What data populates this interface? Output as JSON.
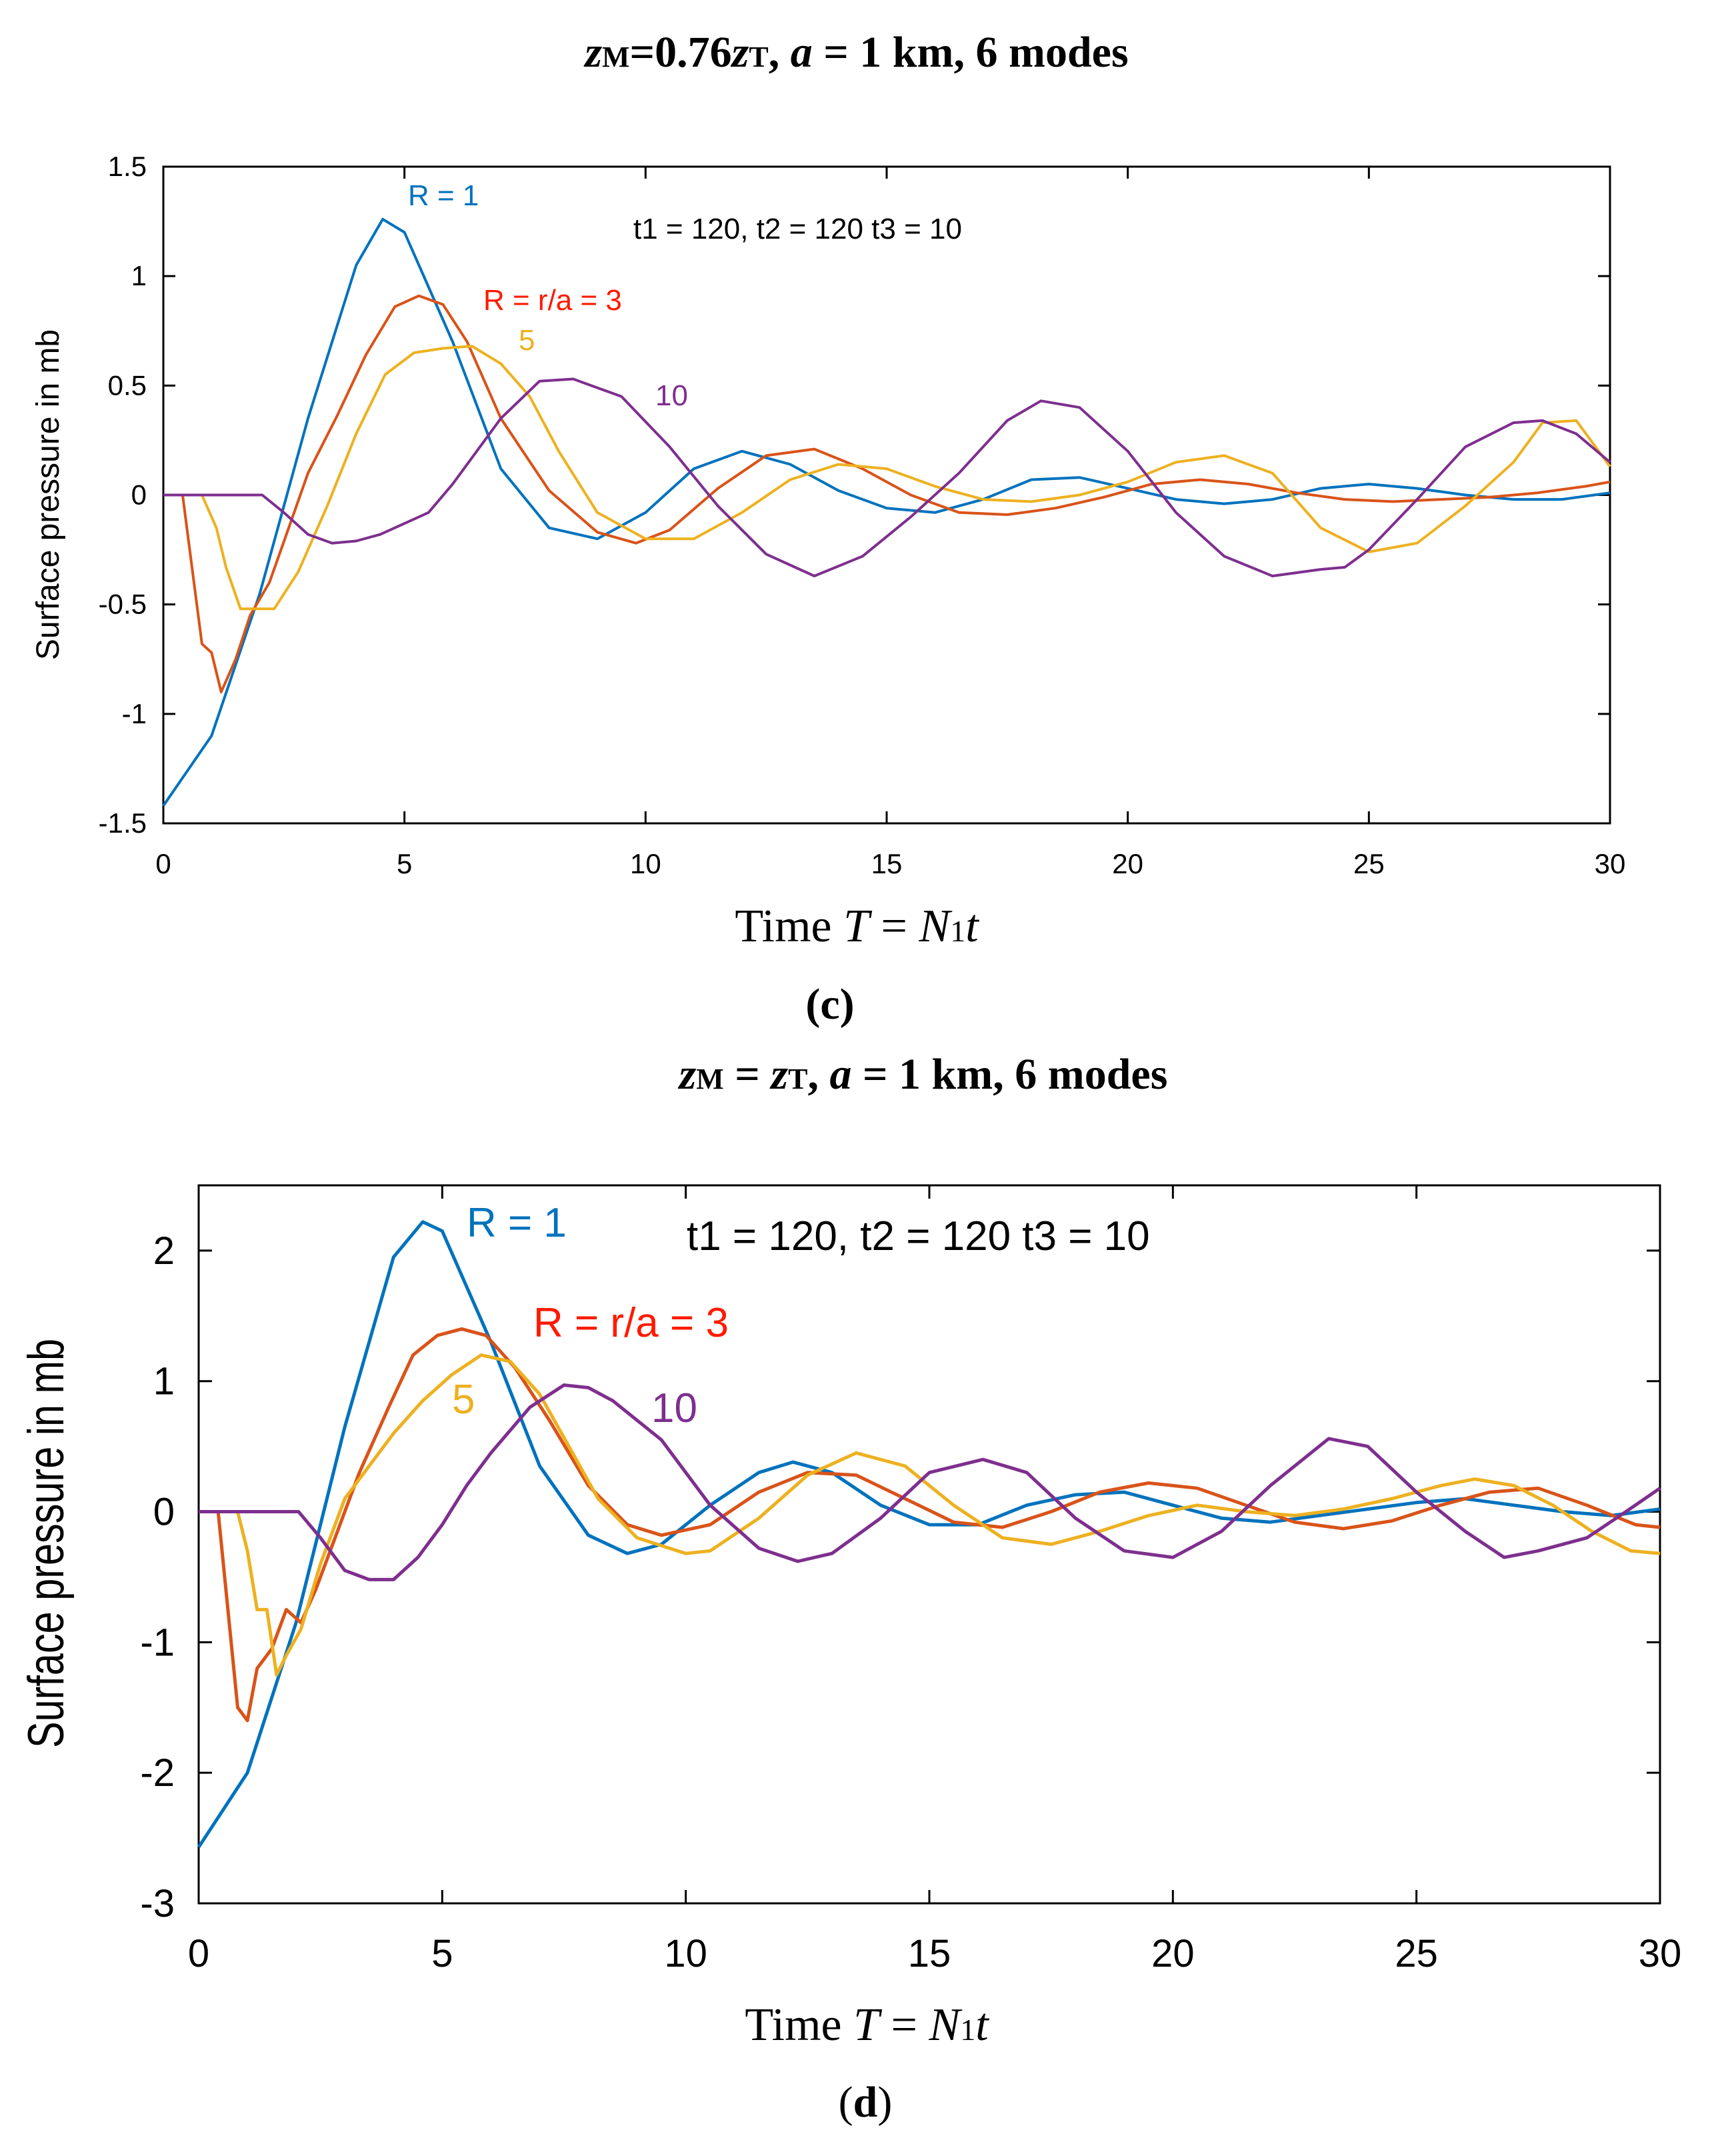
{
  "chart_data": [
    {
      "type": "line",
      "panel_label": "(c)",
      "title": {
        "z_sym": "z",
        "m_sub": "M",
        "mid": "=0.76",
        "z2_sym": "z",
        "t_sub": "T",
        "a_pre": ", ",
        "a_sym": "a",
        "rest": " = 1 km, 6 modes"
      },
      "xlabel": {
        "pre": "Time ",
        "T": "T",
        "eq": " = ",
        "N": "N",
        "sub": "1",
        "t": "t"
      },
      "ylabel": "Surface pressure in mb",
      "xlim": [
        0,
        30
      ],
      "ylim": [
        -1.5,
        1.5
      ],
      "xticks": [
        "0",
        "5",
        "10",
        "15",
        "20",
        "25",
        "30"
      ],
      "yticks": [
        "-1.5",
        "-1",
        "-0.5",
        "0",
        "0.5",
        "1",
        "1.5"
      ],
      "grid": false,
      "annotations": {
        "params": "t1 = 120, t2 = 120 t3 = 10",
        "r1": "R = 1",
        "r3": "R = r/a = 3",
        "r5": "5",
        "r10": "10"
      },
      "series": [
        {
          "name": "R = 1",
          "color": "#0072BD",
          "x": [
            0,
            1,
            2,
            3,
            4,
            4.55,
            5,
            6,
            7,
            8,
            9,
            10,
            11,
            12,
            13,
            14,
            15,
            16,
            17,
            18,
            19,
            20,
            21,
            22,
            23,
            24,
            25,
            26,
            27,
            28,
            29,
            30
          ],
          "y": [
            -1.42,
            -1.1,
            -0.45,
            0.35,
            1.05,
            1.26,
            1.2,
            0.7,
            0.12,
            -0.15,
            -0.2,
            -0.08,
            0.12,
            0.2,
            0.14,
            0.02,
            -0.06,
            -0.08,
            -0.02,
            0.07,
            0.08,
            0.03,
            -0.02,
            -0.04,
            -0.02,
            0.03,
            0.05,
            0.03,
            0.0,
            -0.02,
            -0.02,
            0.01
          ]
        },
        {
          "name": "R = r/a = 3",
          "color": "#D95319",
          "x": [
            0,
            0.4,
            0.8,
            1.0,
            1.2,
            1.5,
            1.8,
            2.2,
            2.6,
            3.0,
            3.6,
            4.2,
            4.8,
            5.3,
            5.8,
            6.3,
            7,
            8,
            9,
            9.8,
            10.5,
            11.5,
            12.5,
            13.5,
            14.5,
            15.5,
            16.5,
            17.5,
            18.5,
            19.5,
            20.5,
            21.5,
            22.5,
            23.5,
            24.5,
            25.5,
            26.5,
            27.5,
            28.5,
            29.5,
            30
          ],
          "y": [
            0,
            0,
            -0.68,
            -0.72,
            -0.9,
            -0.75,
            -0.55,
            -0.4,
            -0.15,
            0.1,
            0.36,
            0.64,
            0.86,
            0.91,
            0.87,
            0.7,
            0.35,
            0.02,
            -0.17,
            -0.22,
            -0.16,
            0.03,
            0.18,
            0.21,
            0.12,
            0.0,
            -0.08,
            -0.09,
            -0.06,
            -0.01,
            0.05,
            0.07,
            0.05,
            0.01,
            -0.02,
            -0.03,
            -0.02,
            -0.01,
            0.01,
            0.04,
            0.06
          ]
        },
        {
          "name": "5",
          "color": "#EDB120",
          "x": [
            0,
            0.8,
            1.1,
            1.3,
            1.6,
            1.8,
            2.3,
            2.8,
            3.4,
            4.0,
            4.6,
            5.2,
            5.8,
            6.4,
            7.0,
            7.6,
            8.2,
            9,
            10,
            11,
            12,
            13,
            14,
            15,
            16,
            17,
            18,
            19,
            20,
            21,
            22,
            23,
            24,
            25,
            26,
            27,
            28,
            28.6,
            29.3,
            30
          ],
          "y": [
            0,
            0,
            -0.15,
            -0.33,
            -0.52,
            -0.52,
            -0.52,
            -0.35,
            -0.05,
            0.28,
            0.55,
            0.65,
            0.67,
            0.68,
            0.6,
            0.45,
            0.2,
            -0.08,
            -0.2,
            -0.2,
            -0.08,
            0.07,
            0.14,
            0.12,
            0.04,
            -0.02,
            -0.03,
            0.0,
            0.06,
            0.15,
            0.18,
            0.1,
            -0.15,
            -0.26,
            -0.22,
            -0.05,
            0.15,
            0.33,
            0.34,
            0.13
          ]
        },
        {
          "name": "10",
          "color": "#7E2F8E",
          "x": [
            0,
            2.05,
            2.5,
            3.0,
            3.5,
            4.0,
            4.5,
            5.0,
            5.5,
            6,
            7,
            7.8,
            8.5,
            9.5,
            10.5,
            11.5,
            12.5,
            13.5,
            14.5,
            15.5,
            16.5,
            17.5,
            18.2,
            19,
            20,
            21,
            22,
            23,
            24,
            24.5,
            25,
            26,
            27,
            28,
            28.6,
            29.3,
            30
          ],
          "y": [
            0,
            0,
            -0.08,
            -0.18,
            -0.22,
            -0.21,
            -0.18,
            -0.13,
            -0.08,
            0.05,
            0.35,
            0.52,
            0.53,
            0.45,
            0.22,
            -0.05,
            -0.27,
            -0.37,
            -0.28,
            -0.1,
            0.1,
            0.34,
            0.43,
            0.4,
            0.2,
            -0.08,
            -0.28,
            -0.37,
            -0.34,
            -0.33,
            -0.25,
            -0.02,
            0.22,
            0.33,
            0.34,
            0.28,
            0.15
          ]
        }
      ]
    },
    {
      "type": "line",
      "panel_label": "(d)",
      "title": {
        "z_sym": "z",
        "m_sub": "M",
        "mid": " = ",
        "z2_sym": "z",
        "t_sub": "T",
        "a_pre": ", ",
        "a_sym": "a",
        "rest": " = 1 km, 6 modes"
      },
      "xlabel": {
        "pre": "Time ",
        "T": "T",
        "eq": " = ",
        "N": "N",
        "sub": "1",
        "t": "t"
      },
      "ylabel": "Surface pressure in mb",
      "xlim": [
        0,
        30
      ],
      "ylim": [
        -3,
        2.5
      ],
      "xticks": [
        "0",
        "5",
        "10",
        "15",
        "20",
        "25",
        "30"
      ],
      "yticks": [
        "-3",
        "-2",
        "-1",
        "0",
        "1",
        "2"
      ],
      "grid": false,
      "annotations": {
        "params": "t1 = 120, t2 = 120 t3 = 10",
        "r1": "R = 1",
        "r3": "R = r/a = 3",
        "r5": "5",
        "r10": "10"
      },
      "series": [
        {
          "name": "R = 1",
          "color": "#0072BD",
          "x": [
            0,
            1,
            2,
            3,
            4,
            4.6,
            5,
            6,
            7,
            8,
            8.8,
            9.5,
            10.5,
            11.5,
            12.2,
            13,
            14,
            15,
            16,
            17,
            18,
            19,
            20,
            21,
            22,
            23,
            24,
            25,
            26,
            27,
            28,
            29,
            30
          ],
          "y": [
            -2.57,
            -2.0,
            -0.85,
            0.65,
            1.95,
            2.22,
            2.15,
            1.3,
            0.35,
            -0.18,
            -0.32,
            -0.25,
            0.05,
            0.3,
            0.38,
            0.3,
            0.05,
            -0.1,
            -0.1,
            0.05,
            0.13,
            0.15,
            0.05,
            -0.05,
            -0.08,
            -0.03,
            0.02,
            0.07,
            0.1,
            0.05,
            0.0,
            -0.03,
            0.02
          ]
        },
        {
          "name": "R = r/a = 3",
          "color": "#D95319",
          "x": [
            0,
            0.4,
            0.8,
            1.0,
            1.2,
            1.5,
            1.8,
            2.1,
            2.4,
            2.8,
            3.3,
            3.9,
            4.4,
            4.9,
            5.4,
            5.9,
            6.5,
            7.2,
            8,
            8.8,
            9.5,
            10.5,
            11.5,
            12.5,
            13.5,
            14.5,
            15.5,
            16.5,
            17.5,
            18.5,
            19.5,
            20.5,
            21.5,
            22.5,
            23.5,
            24.5,
            25.5,
            26.5,
            27.5,
            28.5,
            29.5,
            30
          ],
          "y": [
            0,
            0,
            -1.5,
            -1.6,
            -1.2,
            -1.05,
            -0.75,
            -0.85,
            -0.6,
            -0.2,
            0.3,
            0.8,
            1.2,
            1.35,
            1.4,
            1.35,
            1.1,
            0.7,
            0.2,
            -0.1,
            -0.18,
            -0.1,
            0.15,
            0.3,
            0.28,
            0.1,
            -0.08,
            -0.12,
            0.0,
            0.15,
            0.22,
            0.18,
            0.05,
            -0.08,
            -0.13,
            -0.07,
            0.05,
            0.15,
            0.18,
            0.05,
            -0.1,
            -0.12
          ]
        },
        {
          "name": "5",
          "color": "#EDB120",
          "x": [
            0,
            0.8,
            1.0,
            1.2,
            1.4,
            1.6,
            1.8,
            2.1,
            2.5,
            3.0,
            3.5,
            4.0,
            4.6,
            5.2,
            5.8,
            6.4,
            7.0,
            7.6,
            8.2,
            9,
            10,
            10.5,
            11.5,
            12.5,
            13.5,
            14.5,
            15.5,
            16.5,
            17.5,
            18.5,
            19.5,
            20.5,
            21.5,
            22.5,
            23.5,
            24.5,
            25.5,
            26.2,
            27,
            27.8,
            28.6,
            29.4,
            30
          ],
          "y": [
            0,
            0,
            -0.3,
            -0.75,
            -0.75,
            -1.25,
            -1.1,
            -0.9,
            -0.4,
            0.1,
            0.35,
            0.6,
            0.85,
            1.05,
            1.2,
            1.15,
            0.9,
            0.5,
            0.1,
            -0.2,
            -0.32,
            -0.3,
            -0.05,
            0.28,
            0.45,
            0.35,
            0.05,
            -0.2,
            -0.25,
            -0.15,
            -0.03,
            0.05,
            0.0,
            -0.03,
            0.02,
            0.1,
            0.2,
            0.25,
            0.2,
            0.05,
            -0.15,
            -0.3,
            -0.32
          ]
        },
        {
          "name": "10",
          "color": "#7E2F8E",
          "x": [
            0,
            2.05,
            2.5,
            3.0,
            3.5,
            4.0,
            4.5,
            5.0,
            5.5,
            6,
            6.8,
            7.5,
            8,
            8.5,
            9.5,
            10.5,
            11.5,
            12.3,
            13,
            14,
            15,
            16.1,
            17,
            18,
            19,
            20,
            21,
            22,
            23.2,
            24,
            25,
            26,
            26.8,
            27.5,
            28.5,
            29.3,
            30
          ],
          "y": [
            0,
            0,
            -0.2,
            -0.45,
            -0.52,
            -0.52,
            -0.35,
            -0.1,
            0.2,
            0.45,
            0.8,
            0.97,
            0.95,
            0.85,
            0.55,
            0.05,
            -0.28,
            -0.38,
            -0.32,
            -0.05,
            0.3,
            0.4,
            0.3,
            -0.05,
            -0.3,
            -0.35,
            -0.15,
            0.2,
            0.56,
            0.5,
            0.15,
            -0.15,
            -0.35,
            -0.3,
            -0.2,
            0.0,
            0.18
          ]
        }
      ]
    }
  ]
}
